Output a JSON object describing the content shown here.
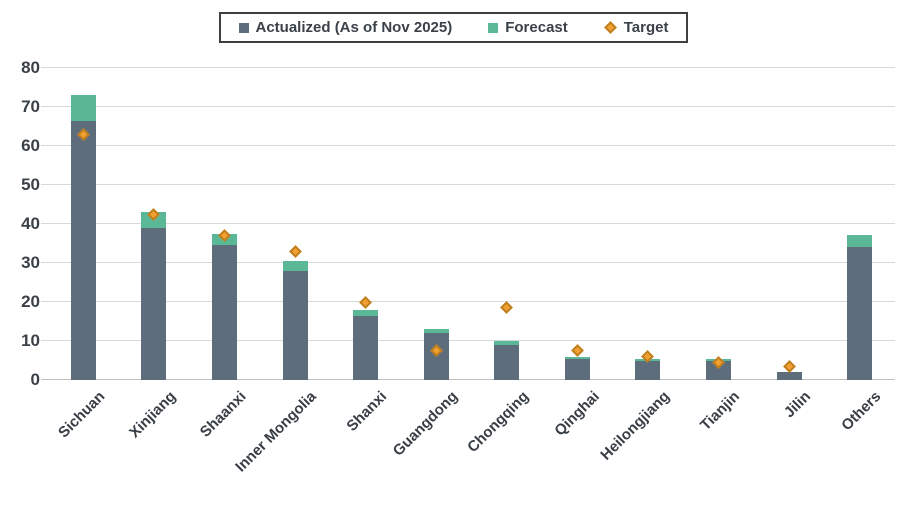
{
  "legend": {
    "items": [
      {
        "label": "Actualized (As of Nov 2025)",
        "swatch": "square",
        "color": "#5d6d7c"
      },
      {
        "label": "Forecast",
        "swatch": "square",
        "color": "#5bb897"
      },
      {
        "label": "Target",
        "swatch": "diamond",
        "color": "#f2a131",
        "stroke": "#c07f1f"
      }
    ]
  },
  "chart_data": {
    "type": "bar",
    "stacked": true,
    "title": "",
    "xlabel": "",
    "ylabel": "",
    "ylim": [
      0,
      80
    ],
    "ytick_step": 10,
    "yticks": [
      0,
      10,
      20,
      30,
      40,
      50,
      60,
      70,
      80
    ],
    "grid": true,
    "legend_position": "top-center",
    "categories": [
      "Sichuan",
      "Xinjiang",
      "Shaanxi",
      "Inner Mongolia",
      "Shanxi",
      "Guangdong",
      "Chongqing",
      "Qinghai",
      "Heilongjiang",
      "Tianjin",
      "Jilin",
      "Others"
    ],
    "series": [
      {
        "name": "Actualized (As of Nov 2025)",
        "type": "bar",
        "color": "#5d6d7c",
        "values": [
          66.5,
          39,
          34.5,
          28,
          16.5,
          12,
          9,
          5.5,
          5,
          5,
          2,
          34
        ]
      },
      {
        "name": "Forecast",
        "type": "bar",
        "color": "#5bb897",
        "values": [
          6.5,
          4,
          3,
          2.5,
          1.5,
          1,
          1,
          0.5,
          0.5,
          0.5,
          0,
          3.2
        ]
      },
      {
        "name": "Target",
        "type": "scatter",
        "marker": "diamond",
        "color": "#f2a131",
        "stroke": "#c07f1f",
        "values": [
          63,
          42.5,
          37,
          33,
          20,
          7.5,
          18.5,
          7.5,
          6,
          4.5,
          3.5,
          null
        ]
      }
    ],
    "colors": {
      "gridline": "#d9d9d9",
      "baseline": "#bfbfbf",
      "axis_text": "#3a4149"
    }
  }
}
